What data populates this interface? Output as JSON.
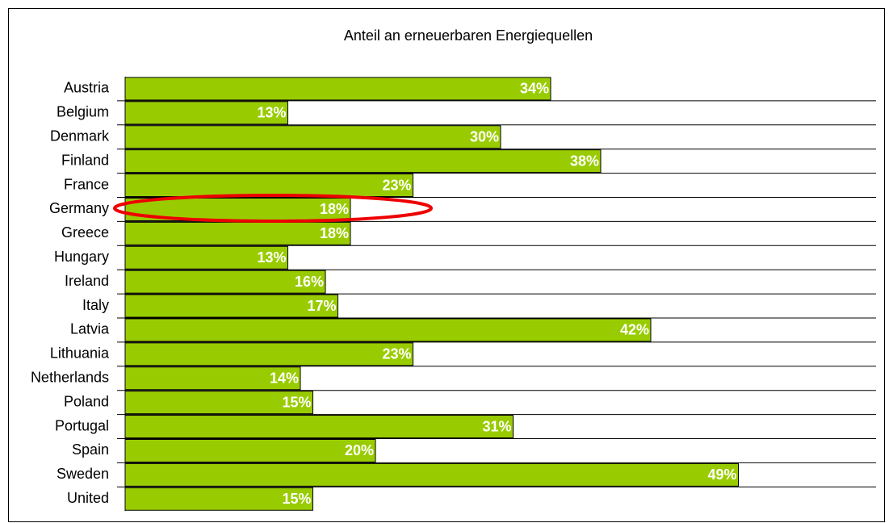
{
  "chart_data": {
    "type": "hbar",
    "title": "Anteil an erneuerbaren Energiequellen",
    "categories": [
      "Austria",
      "Belgium",
      "Denmark",
      "Finland",
      "France",
      "Germany",
      "Greece",
      "Hungary",
      "Ireland",
      "Italy",
      "Latvia",
      "Lithuania",
      "Netherlands",
      "Poland",
      "Portugal",
      "Spain",
      "Sweden",
      "United"
    ],
    "values": [
      34,
      13,
      30,
      38,
      23,
      18,
      18,
      13,
      16,
      17,
      42,
      23,
      14,
      15,
      31,
      20,
      49,
      15
    ],
    "value_labels": [
      "34%",
      "13%",
      "30%",
      "38%",
      "23%",
      "18%",
      "18%",
      "13%",
      "16%",
      "17%",
      "42%",
      "23%",
      "14%",
      "15%",
      "31%",
      "20%",
      "49%",
      "15%"
    ],
    "color": "#99cc00",
    "xlim": [
      0,
      60
    ],
    "grid": true
  }
}
